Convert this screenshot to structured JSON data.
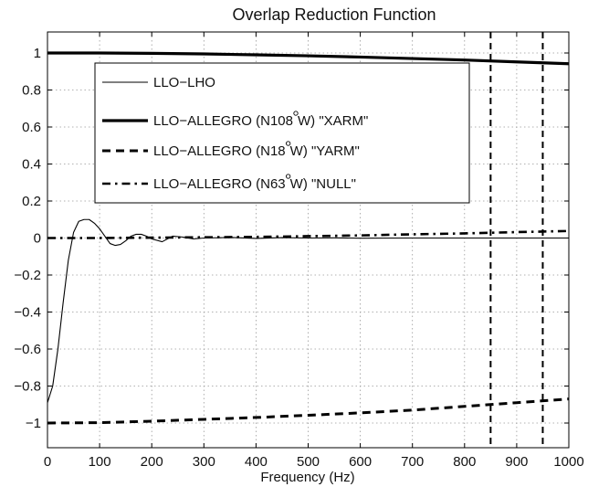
{
  "chart_data": {
    "type": "line",
    "title": "Overlap Reduction Function",
    "xlabel": "Frequency (Hz)",
    "ylabel": "",
    "xlim": [
      0,
      1000
    ],
    "ylim": [
      -1.1,
      1.1
    ],
    "grid": true,
    "legend_position": "top-left",
    "xticks": [
      0,
      100,
      200,
      300,
      400,
      500,
      600,
      700,
      800,
      900,
      1000
    ],
    "xtick_labels": [
      "0",
      "100",
      "200",
      "300",
      "400",
      "500",
      "600",
      "700",
      "800",
      "900",
      "1000"
    ],
    "yticks": [
      1,
      0.8,
      0.6,
      0.4,
      0.2,
      0,
      -0.2,
      -0.4,
      -0.6,
      -0.8,
      -1
    ],
    "ytick_labels": [
      "1",
      "0.8",
      "0.6",
      "0.4",
      "0.2",
      "0",
      "−0.2",
      "−0.4",
      "−0.6",
      "−0.8",
      "−1"
    ],
    "vertical_lines": [
      850,
      950
    ],
    "series": [
      {
        "name": "LLO−LHO",
        "style": "thin-solid",
        "x": [
          0,
          10,
          20,
          30,
          40,
          50,
          60,
          70,
          80,
          90,
          100,
          110,
          120,
          130,
          140,
          150,
          160,
          170,
          180,
          190,
          200,
          220,
          240,
          260,
          280,
          300,
          350,
          400,
          450,
          500,
          550,
          600,
          700,
          800,
          900,
          1000
        ],
        "y": [
          -0.89,
          -0.8,
          -0.6,
          -0.35,
          -0.12,
          0.03,
          0.09,
          0.1,
          0.1,
          0.08,
          0.05,
          0.01,
          -0.03,
          -0.04,
          -0.035,
          -0.015,
          0.01,
          0.02,
          0.02,
          0.01,
          -0.005,
          -0.02,
          0.01,
          0.005,
          -0.005,
          0.0,
          0.003,
          -0.002,
          0.002,
          0.0,
          0.001,
          -0.001,
          0.0,
          0.0,
          0.0,
          0.0
        ]
      },
      {
        "name": "LLO−ALLEGRO (N108°W) \"XARM\"",
        "legend_lines": [
          "LLO−ALLEGRO (N108",
          "W) \"XARM\""
        ],
        "style": "thick-solid",
        "x": [
          0,
          100,
          200,
          300,
          400,
          500,
          600,
          700,
          800,
          900,
          1000
        ],
        "y": [
          1.0,
          1.0,
          0.998,
          0.995,
          0.99,
          0.985,
          0.978,
          0.97,
          0.962,
          0.952,
          0.942
        ]
      },
      {
        "name": "LLO−ALLEGRO (N18°W) \"YARM\"",
        "legend_lines": [
          "LLO−ALLEGRO (N18",
          "W) \"YARM\""
        ],
        "style": "dashed",
        "x": [
          0,
          100,
          200,
          300,
          400,
          500,
          600,
          700,
          800,
          900,
          1000
        ],
        "y": [
          -1.0,
          -0.998,
          -0.99,
          -0.98,
          -0.97,
          -0.958,
          -0.945,
          -0.93,
          -0.91,
          -0.89,
          -0.87
        ]
      },
      {
        "name": "LLO−ALLEGRO (N63°W) \"NULL\"",
        "legend_lines": [
          "LLO−ALLEGRO (N63",
          "W) \"NULL\""
        ],
        "style": "dash-dot",
        "x": [
          0,
          100,
          200,
          300,
          400,
          500,
          600,
          700,
          800,
          900,
          1000
        ],
        "y": [
          0.0,
          0.0,
          0.002,
          0.004,
          0.006,
          0.01,
          0.014,
          0.02,
          0.025,
          0.032,
          0.038
        ]
      }
    ]
  }
}
